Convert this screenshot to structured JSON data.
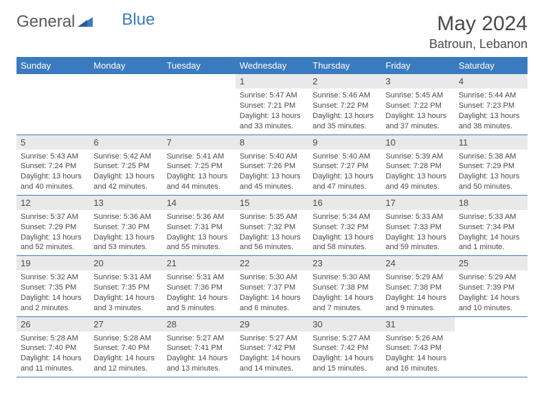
{
  "brand": {
    "part1": "General",
    "part2": "Blue"
  },
  "title": "May 2024",
  "location": "Batroun, Lebanon",
  "colors": {
    "header_bg": "#3a7bbf",
    "header_fg": "#ffffff",
    "daynum_bg": "#e9e9e9",
    "text": "#4a4a4a",
    "rule": "#3a7bbf"
  },
  "weekdays": [
    "Sunday",
    "Monday",
    "Tuesday",
    "Wednesday",
    "Thursday",
    "Friday",
    "Saturday"
  ],
  "weeks": [
    [
      {
        "n": "",
        "sr": "",
        "ss": "",
        "dl": ""
      },
      {
        "n": "",
        "sr": "",
        "ss": "",
        "dl": ""
      },
      {
        "n": "",
        "sr": "",
        "ss": "",
        "dl": ""
      },
      {
        "n": "1",
        "sr": "Sunrise: 5:47 AM",
        "ss": "Sunset: 7:21 PM",
        "dl": "Daylight: 13 hours and 33 minutes."
      },
      {
        "n": "2",
        "sr": "Sunrise: 5:46 AM",
        "ss": "Sunset: 7:22 PM",
        "dl": "Daylight: 13 hours and 35 minutes."
      },
      {
        "n": "3",
        "sr": "Sunrise: 5:45 AM",
        "ss": "Sunset: 7:22 PM",
        "dl": "Daylight: 13 hours and 37 minutes."
      },
      {
        "n": "4",
        "sr": "Sunrise: 5:44 AM",
        "ss": "Sunset: 7:23 PM",
        "dl": "Daylight: 13 hours and 38 minutes."
      }
    ],
    [
      {
        "n": "5",
        "sr": "Sunrise: 5:43 AM",
        "ss": "Sunset: 7:24 PM",
        "dl": "Daylight: 13 hours and 40 minutes."
      },
      {
        "n": "6",
        "sr": "Sunrise: 5:42 AM",
        "ss": "Sunset: 7:25 PM",
        "dl": "Daylight: 13 hours and 42 minutes."
      },
      {
        "n": "7",
        "sr": "Sunrise: 5:41 AM",
        "ss": "Sunset: 7:25 PM",
        "dl": "Daylight: 13 hours and 44 minutes."
      },
      {
        "n": "8",
        "sr": "Sunrise: 5:40 AM",
        "ss": "Sunset: 7:26 PM",
        "dl": "Daylight: 13 hours and 45 minutes."
      },
      {
        "n": "9",
        "sr": "Sunrise: 5:40 AM",
        "ss": "Sunset: 7:27 PM",
        "dl": "Daylight: 13 hours and 47 minutes."
      },
      {
        "n": "10",
        "sr": "Sunrise: 5:39 AM",
        "ss": "Sunset: 7:28 PM",
        "dl": "Daylight: 13 hours and 49 minutes."
      },
      {
        "n": "11",
        "sr": "Sunrise: 5:38 AM",
        "ss": "Sunset: 7:29 PM",
        "dl": "Daylight: 13 hours and 50 minutes."
      }
    ],
    [
      {
        "n": "12",
        "sr": "Sunrise: 5:37 AM",
        "ss": "Sunset: 7:29 PM",
        "dl": "Daylight: 13 hours and 52 minutes."
      },
      {
        "n": "13",
        "sr": "Sunrise: 5:36 AM",
        "ss": "Sunset: 7:30 PM",
        "dl": "Daylight: 13 hours and 53 minutes."
      },
      {
        "n": "14",
        "sr": "Sunrise: 5:36 AM",
        "ss": "Sunset: 7:31 PM",
        "dl": "Daylight: 13 hours and 55 minutes."
      },
      {
        "n": "15",
        "sr": "Sunrise: 5:35 AM",
        "ss": "Sunset: 7:32 PM",
        "dl": "Daylight: 13 hours and 56 minutes."
      },
      {
        "n": "16",
        "sr": "Sunrise: 5:34 AM",
        "ss": "Sunset: 7:32 PM",
        "dl": "Daylight: 13 hours and 58 minutes."
      },
      {
        "n": "17",
        "sr": "Sunrise: 5:33 AM",
        "ss": "Sunset: 7:33 PM",
        "dl": "Daylight: 13 hours and 59 minutes."
      },
      {
        "n": "18",
        "sr": "Sunrise: 5:33 AM",
        "ss": "Sunset: 7:34 PM",
        "dl": "Daylight: 14 hours and 1 minute."
      }
    ],
    [
      {
        "n": "19",
        "sr": "Sunrise: 5:32 AM",
        "ss": "Sunset: 7:35 PM",
        "dl": "Daylight: 14 hours and 2 minutes."
      },
      {
        "n": "20",
        "sr": "Sunrise: 5:31 AM",
        "ss": "Sunset: 7:35 PM",
        "dl": "Daylight: 14 hours and 3 minutes."
      },
      {
        "n": "21",
        "sr": "Sunrise: 5:31 AM",
        "ss": "Sunset: 7:36 PM",
        "dl": "Daylight: 14 hours and 5 minutes."
      },
      {
        "n": "22",
        "sr": "Sunrise: 5:30 AM",
        "ss": "Sunset: 7:37 PM",
        "dl": "Daylight: 14 hours and 6 minutes."
      },
      {
        "n": "23",
        "sr": "Sunrise: 5:30 AM",
        "ss": "Sunset: 7:38 PM",
        "dl": "Daylight: 14 hours and 7 minutes."
      },
      {
        "n": "24",
        "sr": "Sunrise: 5:29 AM",
        "ss": "Sunset: 7:38 PM",
        "dl": "Daylight: 14 hours and 9 minutes."
      },
      {
        "n": "25",
        "sr": "Sunrise: 5:29 AM",
        "ss": "Sunset: 7:39 PM",
        "dl": "Daylight: 14 hours and 10 minutes."
      }
    ],
    [
      {
        "n": "26",
        "sr": "Sunrise: 5:28 AM",
        "ss": "Sunset: 7:40 PM",
        "dl": "Daylight: 14 hours and 11 minutes."
      },
      {
        "n": "27",
        "sr": "Sunrise: 5:28 AM",
        "ss": "Sunset: 7:40 PM",
        "dl": "Daylight: 14 hours and 12 minutes."
      },
      {
        "n": "28",
        "sr": "Sunrise: 5:27 AM",
        "ss": "Sunset: 7:41 PM",
        "dl": "Daylight: 14 hours and 13 minutes."
      },
      {
        "n": "29",
        "sr": "Sunrise: 5:27 AM",
        "ss": "Sunset: 7:42 PM",
        "dl": "Daylight: 14 hours and 14 minutes."
      },
      {
        "n": "30",
        "sr": "Sunrise: 5:27 AM",
        "ss": "Sunset: 7:42 PM",
        "dl": "Daylight: 14 hours and 15 minutes."
      },
      {
        "n": "31",
        "sr": "Sunrise: 5:26 AM",
        "ss": "Sunset: 7:43 PM",
        "dl": "Daylight: 14 hours and 16 minutes."
      },
      {
        "n": "",
        "sr": "",
        "ss": "",
        "dl": ""
      }
    ]
  ]
}
